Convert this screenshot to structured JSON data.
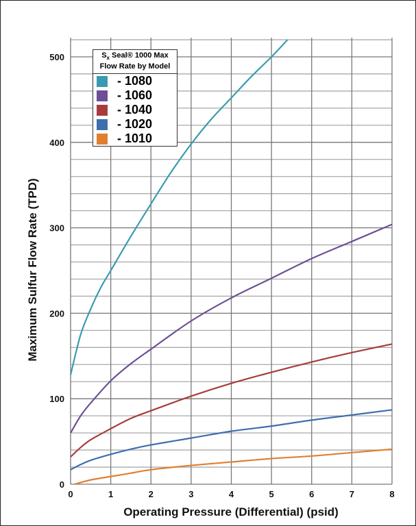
{
  "chart_data": {
    "type": "line",
    "title": "",
    "xlabel": "Operating Pressure (Differential) (psid)",
    "ylabel": "Maximum Sulfur Flow Rate (TPD)",
    "xlim": [
      0,
      8
    ],
    "ylim": [
      0,
      520
    ],
    "xticks": [
      0,
      1,
      2,
      3,
      4,
      5,
      6,
      7,
      8
    ],
    "yticks": [
      0,
      100,
      200,
      300,
      400,
      500
    ],
    "grid": true,
    "legend": {
      "placement": "top-left",
      "title_sub_prefix": "S",
      "title_sub": "x",
      "title_rest": " Seal® 1000 Max",
      "title_line2": "Flow Rate by Model"
    },
    "series": [
      {
        "name": "- 1080",
        "color": "#3a9bb0",
        "x": [
          0,
          0.25,
          0.5,
          0.75,
          1,
          1.5,
          2,
          2.5,
          3,
          3.5,
          4,
          4.5,
          5,
          5.4
        ],
        "y": [
          128,
          175,
          205,
          230,
          250,
          290,
          328,
          365,
          398,
          427,
          452,
          477,
          500,
          520
        ]
      },
      {
        "name": "- 1060",
        "color": "#6c4f96",
        "x": [
          0,
          0.25,
          0.5,
          1,
          1.5,
          2,
          3,
          4,
          5,
          6,
          7,
          8
        ],
        "y": [
          60,
          80,
          95,
          121,
          141,
          158,
          191,
          218,
          241,
          264,
          284,
          304
        ]
      },
      {
        "name": "- 1040",
        "color": "#a83c3c",
        "x": [
          0,
          0.25,
          0.5,
          1,
          1.5,
          2,
          3,
          4,
          5,
          6,
          7,
          8
        ],
        "y": [
          32,
          43,
          52,
          65,
          77,
          86,
          103,
          118,
          131,
          143,
          154,
          164
        ]
      },
      {
        "name": "- 1020",
        "color": "#3e6eae",
        "x": [
          0,
          0.25,
          0.5,
          1,
          1.5,
          2,
          3,
          4,
          5,
          6,
          7,
          8
        ],
        "y": [
          17,
          23,
          28,
          35,
          41,
          46,
          54,
          62,
          68,
          75,
          81,
          87
        ]
      },
      {
        "name": "- 1010",
        "color": "#e07f2f",
        "x": [
          0.1,
          0.5,
          1,
          1.5,
          2,
          3,
          4,
          5,
          6,
          7,
          8
        ],
        "y": [
          0,
          5,
          9,
          13,
          17,
          22,
          26,
          30,
          33,
          37,
          41
        ]
      }
    ]
  }
}
